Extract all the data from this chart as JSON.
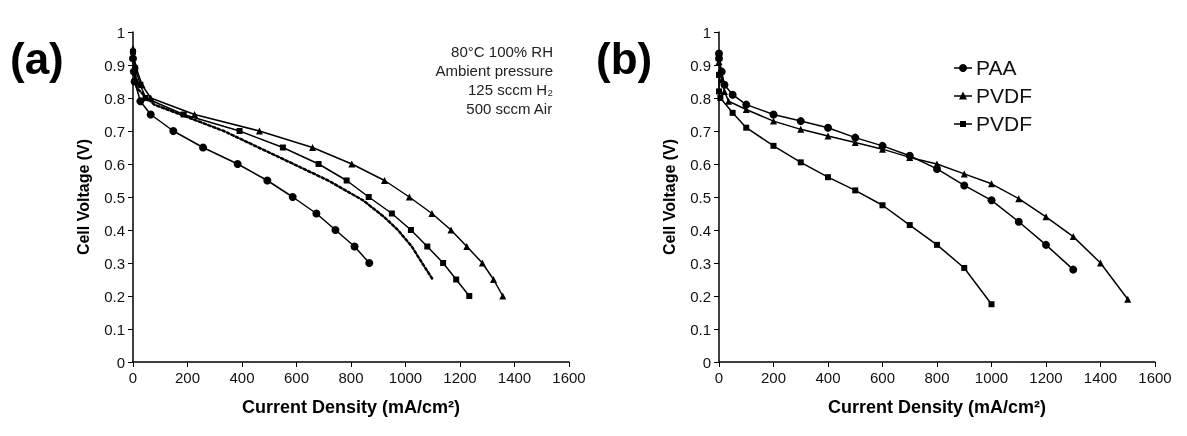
{
  "chart_data": [
    {
      "type": "line",
      "title": "(a)",
      "xlabel": "Current Density (mA/cm²)",
      "ylabel": "Cell Voltage (V)",
      "xlim": [
        0,
        1600
      ],
      "xticks": [
        0,
        200,
        400,
        600,
        800,
        1000,
        1200,
        1400,
        1600
      ],
      "ylim": [
        0,
        1
      ],
      "yticks": [
        0,
        0.1,
        0.2,
        0.3,
        0.4,
        0.5,
        0.6,
        0.7,
        0.8,
        0.9,
        1
      ],
      "grid": false,
      "legend": false,
      "line_style": "solid",
      "annotations": [
        "80°C 100% RH",
        "Ambient pressure",
        "125 sccm H₂",
        "500 sccm Air"
      ],
      "series": [
        {
          "color": "#000000",
          "marker": "triangle",
          "x": [
            0,
            8,
            33,
            65,
            226,
            464,
            659,
            803,
            923,
            1014,
            1097,
            1167,
            1225,
            1282,
            1323,
            1357
          ],
          "values": [
            0.95,
            0.9,
            0.84,
            0.8,
            0.75,
            0.7,
            0.65,
            0.6,
            0.55,
            0.5,
            0.45,
            0.4,
            0.35,
            0.3,
            0.25,
            0.2
          ]
        },
        {
          "color": "#000000",
          "marker": "square",
          "x": [
            0,
            8,
            27,
            46,
            186,
            391,
            550,
            681,
            784,
            865,
            950,
            1020,
            1080,
            1138,
            1186,
            1234
          ],
          "values": [
            0.94,
            0.89,
            0.84,
            0.8,
            0.75,
            0.7,
            0.65,
            0.6,
            0.55,
            0.5,
            0.45,
            0.4,
            0.35,
            0.3,
            0.25,
            0.2
          ]
        },
        {
          "color": "#000000",
          "marker": "none",
          "line_style": "dotted",
          "x": [
            0,
            14,
            78,
            206,
            333,
            461,
            589,
            716,
            844,
            921,
            972,
            1023,
            1061,
            1100
          ],
          "values": [
            0.93,
            0.83,
            0.78,
            0.74,
            0.7,
            0.65,
            0.6,
            0.55,
            0.49,
            0.44,
            0.4,
            0.35,
            0.3,
            0.25
          ]
        },
        {
          "color": "#000000",
          "marker": "circle",
          "x": [
            0,
            3,
            6,
            27,
            65,
            148,
            257,
            384,
            493,
            586,
            673,
            743,
            813,
            867
          ],
          "values": [
            0.92,
            0.88,
            0.85,
            0.79,
            0.75,
            0.7,
            0.65,
            0.6,
            0.55,
            0.5,
            0.45,
            0.4,
            0.35,
            0.3
          ]
        }
      ]
    },
    {
      "type": "line",
      "title": "(b)",
      "xlabel": "Current Density (mA/cm²)",
      "ylabel": "Cell Voltage (V)",
      "xlim": [
        0,
        1600
      ],
      "xticks": [
        0,
        200,
        400,
        600,
        800,
        1000,
        1200,
        1400,
        1600
      ],
      "ylim": [
        0,
        1
      ],
      "yticks": [
        0,
        0.1,
        0.2,
        0.3,
        0.4,
        0.5,
        0.6,
        0.7,
        0.8,
        0.9,
        1
      ],
      "grid": false,
      "legend": "top right",
      "line_style": "solid",
      "series": [
        {
          "name": "PAA",
          "color": "#000000",
          "marker": "circle",
          "x": [
            0,
            0,
            10,
            20,
            50,
            100,
            200,
            300,
            400,
            500,
            600,
            700,
            800,
            900,
            1000,
            1100,
            1200,
            1300
          ],
          "values": [
            0.935,
            0.92,
            0.88,
            0.84,
            0.81,
            0.78,
            0.75,
            0.73,
            0.71,
            0.68,
            0.655,
            0.625,
            0.585,
            0.535,
            0.49,
            0.425,
            0.355,
            0.28
          ]
        },
        {
          "name": "PVDF",
          "color": "#000000",
          "marker": "triangle",
          "x": [
            0,
            10,
            20,
            35,
            100,
            200,
            300,
            400,
            500,
            600,
            700,
            800,
            900,
            1000,
            1100,
            1200,
            1300,
            1400,
            1500
          ],
          "values": [
            0.91,
            0.855,
            0.82,
            0.79,
            0.765,
            0.73,
            0.705,
            0.685,
            0.665,
            0.645,
            0.62,
            0.6,
            0.57,
            0.54,
            0.495,
            0.44,
            0.38,
            0.3,
            0.19
          ]
        },
        {
          "name": "PVDF",
          "color": "#000000",
          "marker": "square",
          "x": [
            0,
            0,
            5,
            50,
            100,
            200,
            300,
            400,
            500,
            600,
            700,
            800,
            900,
            1000
          ],
          "values": [
            0.87,
            0.82,
            0.8,
            0.755,
            0.71,
            0.655,
            0.605,
            0.56,
            0.52,
            0.475,
            0.415,
            0.355,
            0.285,
            0.175
          ]
        }
      ]
    }
  ]
}
